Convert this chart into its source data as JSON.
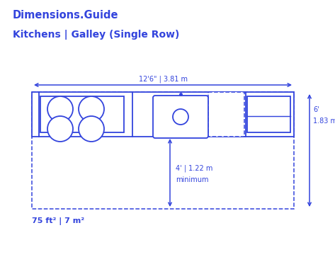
{
  "title_line1": "Dimensions.Guide",
  "title_line2": "Kitchens | Galley (Single Row)",
  "bg_color": "#ffffff",
  "blue": "#3344dd",
  "width_label": "12'6\" | 3.81 m",
  "depth_label1": "6'",
  "depth_label2": "1.83 m",
  "clearance_label1": "4' | 1.22 m",
  "clearance_label2": "minimum",
  "area_label": "75 ft² | 7 m²",
  "fig_width": 4.73,
  "fig_height": 3.63
}
